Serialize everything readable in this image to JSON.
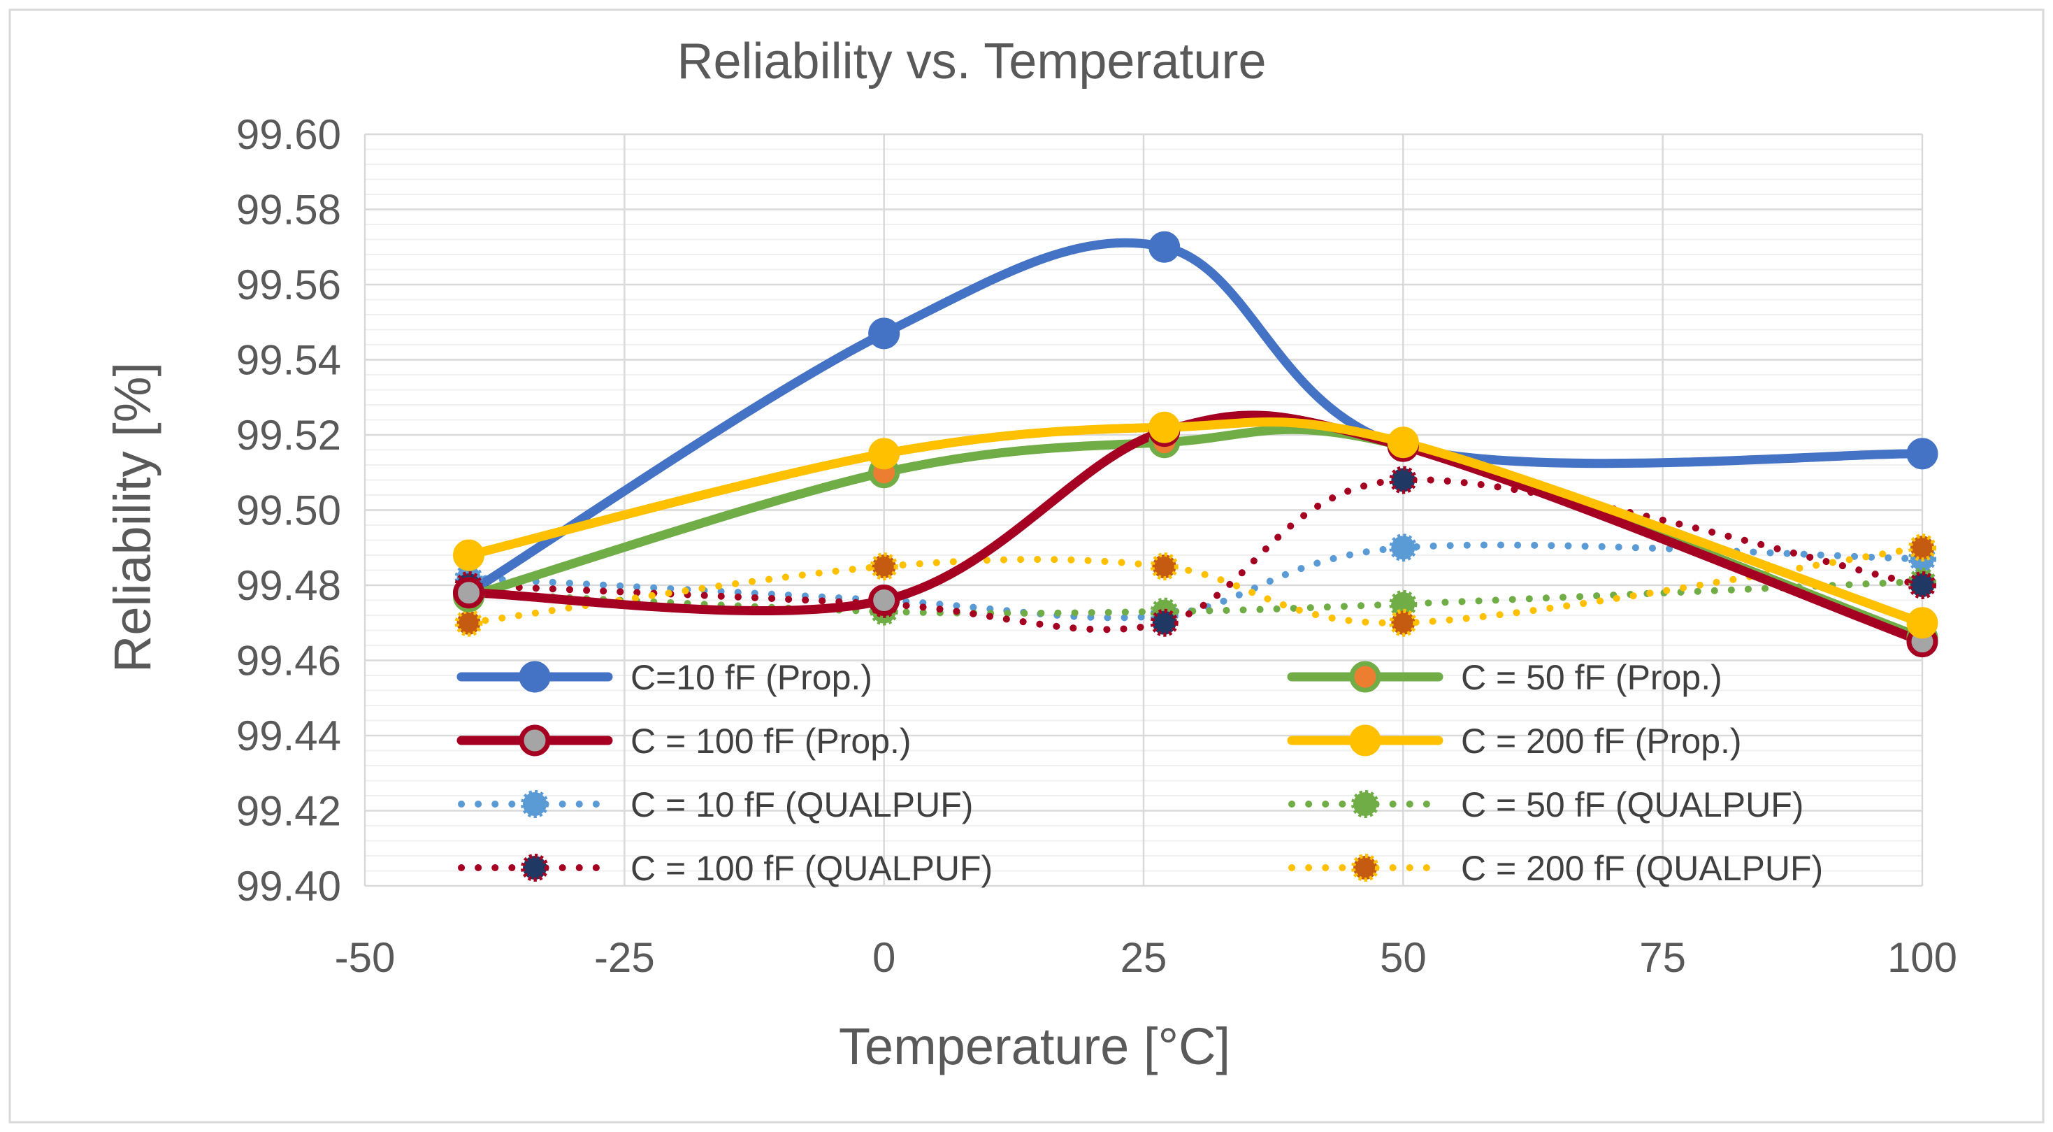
{
  "chart_data": {
    "type": "line",
    "title": "Reliability vs. Temperature",
    "xlabel": "Temperature [°C]",
    "ylabel": "Reliability [%]",
    "xlim": [
      -50,
      100
    ],
    "ylim": [
      99.4,
      99.6
    ],
    "x_ticks": [
      "-50",
      "-25",
      "0",
      "25",
      "50",
      "75",
      "100"
    ],
    "y_ticks": [
      "99.40",
      "99.42",
      "99.44",
      "99.46",
      "99.48",
      "99.50",
      "99.52",
      "99.54",
      "99.56",
      "99.58",
      "99.60"
    ],
    "grid": true,
    "legend_position": "inside-bottom",
    "x": [
      -40,
      0,
      27,
      50,
      100
    ],
    "series": [
      {
        "name": "C=10 fF (Prop.)",
        "values": [
          99.478,
          99.547,
          99.57,
          99.517,
          99.515
        ],
        "color": "#4472C4",
        "style": "solid",
        "marker_fill": "#4472C4"
      },
      {
        "name": "C = 50 fF (Prop.)",
        "values": [
          99.477,
          99.51,
          99.518,
          99.517,
          99.466
        ],
        "color": "#70AD47",
        "style": "solid",
        "marker_fill": "#ED7D31"
      },
      {
        "name": "C = 100 fF (Prop.)",
        "values": [
          99.478,
          99.476,
          99.521,
          99.517,
          99.465
        ],
        "color": "#A50021",
        "style": "solid",
        "marker_fill": "#A5A5A5"
      },
      {
        "name": "C = 200 fF (Prop.)",
        "values": [
          99.488,
          99.515,
          99.522,
          99.518,
          99.47
        ],
        "color": "#FFC000",
        "style": "solid",
        "marker_fill": "#FFC000"
      },
      {
        "name": "C = 10 fF (QUALPUF)",
        "values": [
          99.482,
          99.476,
          99.472,
          99.49,
          99.487
        ],
        "color": "#5B9BD5",
        "style": "dotted",
        "marker_fill": "#5B9BD5"
      },
      {
        "name": "C = 50 fF (QUALPUF)",
        "values": [
          99.478,
          99.473,
          99.473,
          99.475,
          99.481
        ],
        "color": "#70AD47",
        "style": "dotted",
        "marker_fill": "#70AD47"
      },
      {
        "name": "C = 100 fF (QUALPUF)",
        "values": [
          99.48,
          99.475,
          99.47,
          99.508,
          99.48
        ],
        "color": "#A50021",
        "style": "dotted",
        "marker_fill": "#203864"
      },
      {
        "name": "C = 200 fF (QUALPUF)",
        "values": [
          99.47,
          99.485,
          99.485,
          99.47,
          99.49
        ],
        "color": "#FFC000",
        "style": "dotted",
        "marker_fill": "#C55A11"
      }
    ]
  }
}
